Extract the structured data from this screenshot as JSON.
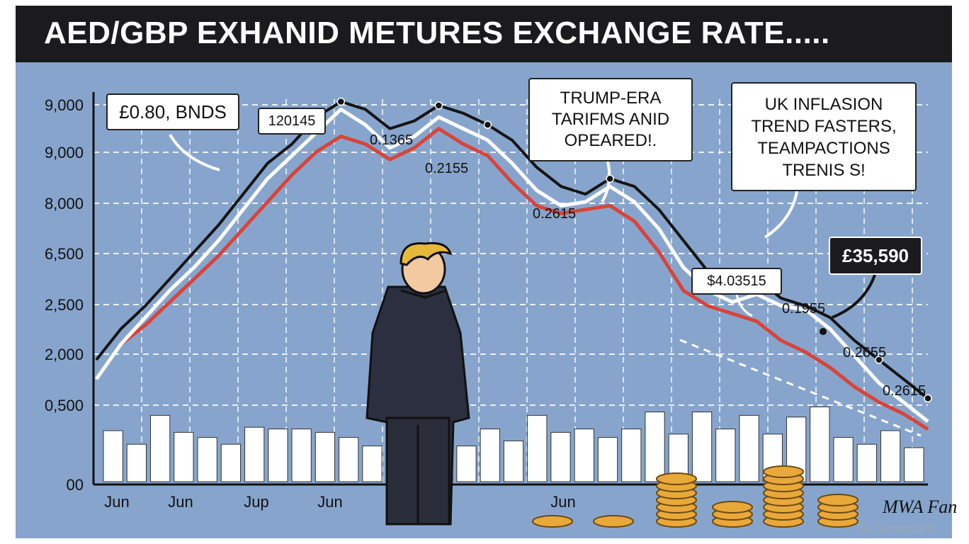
{
  "title": "AED/GBP EXHANID METURES EXCHANGE RATE.....",
  "colors": {
    "background": "#87a5cc",
    "black_series": "#141414",
    "red_series": "#d8443a",
    "white_series": "#ffffff",
    "bars": "#ffffff",
    "title_bar": "#1b1b1d"
  },
  "callouts": {
    "left_note": "£0.80, BNDS",
    "peak_box": "120145",
    "tariffs_note": [
      "TRUMP-ERA",
      "TARIFMS ANID",
      "OPEARED!."
    ],
    "inflation_note": [
      "UK INFLASION",
      "TREND FASTERS,",
      "TEAMPACTIONS",
      "TRENIS S!"
    ],
    "price_box": "£35,590",
    "mid_box": "$4.03515"
  },
  "point_labels": [
    "0.1365",
    "0.2155",
    "0.2615",
    "0.1955",
    "0.2655",
    "0.2615"
  ],
  "signature": "MWA Fan",
  "watermark": "AI Generated",
  "chart_data": {
    "type": "line",
    "title": "AED/GBP EXHANID METURES EXCHANGE RATE.....",
    "xlabel": "",
    "ylabel": "",
    "x_tick_labels": [
      "Jun",
      "Jun",
      "Jup",
      "Jun",
      "Jun"
    ],
    "y_tick_labels": [
      "00",
      "0,500",
      "2,000",
      "2,500",
      "6,500",
      "8,000",
      "9,000",
      "9,000"
    ],
    "grid": true,
    "series": [
      {
        "color": "#141414",
        "values": [
          2.5,
          3.3,
          3.9,
          4.6,
          5.3,
          6.0,
          6.8,
          7.6,
          8.1,
          8.8,
          9.2,
          9.0,
          8.5,
          8.7,
          9.1,
          8.9,
          8.6,
          8.2,
          7.5,
          7.0,
          6.8,
          7.2,
          7.0,
          6.4,
          5.6,
          4.8,
          4.4,
          4.6,
          4.1,
          3.9,
          3.6,
          3.0,
          2.5,
          2.0,
          1.5
        ]
      },
      {
        "color": "#ffffff",
        "values": [
          2.0,
          2.9,
          3.6,
          4.3,
          4.9,
          5.6,
          6.4,
          7.2,
          7.8,
          8.4,
          9.0,
          8.6,
          8.0,
          8.3,
          8.8,
          8.5,
          8.2,
          7.6,
          6.9,
          6.5,
          6.6,
          7.0,
          6.6,
          5.9,
          4.9,
          4.3,
          4.0,
          4.2,
          3.9,
          3.8,
          3.3,
          2.6,
          1.9,
          1.4,
          0.9
        ]
      },
      {
        "color": "#d8443a",
        "values": [
          null,
          2.9,
          3.4,
          4.0,
          4.6,
          5.2,
          5.9,
          6.6,
          7.3,
          7.9,
          8.3,
          8.1,
          7.7,
          8.0,
          8.5,
          8.1,
          7.8,
          7.1,
          6.5,
          6.3,
          6.4,
          6.5,
          6.1,
          5.3,
          4.3,
          3.9,
          3.7,
          3.5,
          3.0,
          2.7,
          2.3,
          1.8,
          1.4,
          1.1,
          0.7
        ]
      }
    ],
    "volume_bars": [
      3.0,
      2.2,
      3.9,
      2.9,
      2.6,
      2.2,
      3.2,
      3.1,
      3.1,
      2.9,
      2.6,
      2.1,
      1.7,
      1.5,
      2.6,
      2.1,
      3.1,
      2.4,
      3.9,
      2.9,
      3.1,
      2.6,
      3.1,
      4.1,
      2.8,
      4.1,
      3.1,
      3.9,
      2.8,
      3.8,
      4.4,
      2.6,
      2.2,
      3.0,
      2.0
    ]
  }
}
